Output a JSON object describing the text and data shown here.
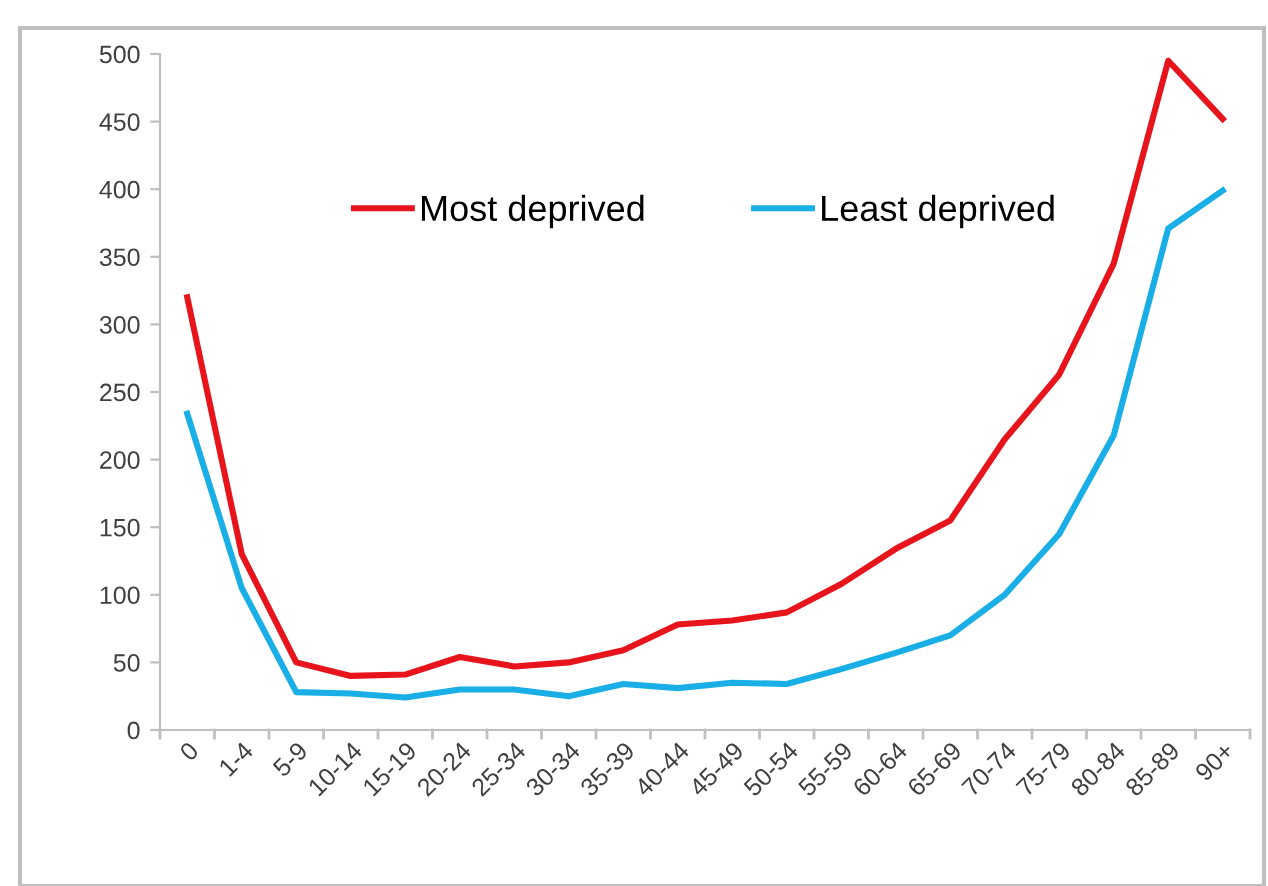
{
  "chart_data": {
    "type": "line",
    "categories": [
      "0",
      "1-4",
      "5-9",
      "10-14",
      "15-19",
      "20-24",
      "25-34",
      "30-34",
      "35-39",
      "40-44",
      "45-49",
      "50-54",
      "55-59",
      "60-64",
      "65-69",
      "70-74",
      "75-79",
      "80-84",
      "85-89",
      "90+"
    ],
    "series": [
      {
        "name": "Most deprived",
        "color": "#e8141b",
        "values": [
          320,
          130,
          50,
          40,
          41,
          54,
          47,
          50,
          59,
          78,
          81,
          87,
          108,
          134,
          155,
          215,
          263,
          345,
          495,
          452
        ]
      },
      {
        "name": "Least deprived",
        "color": "#1aaee6",
        "values": [
          234,
          105,
          28,
          27,
          24,
          30,
          30,
          25,
          34,
          31,
          35,
          34,
          45,
          57,
          70,
          100,
          145,
          218,
          371,
          399
        ]
      }
    ],
    "ylim": [
      0,
      500
    ],
    "yticks": [
      0,
      50,
      100,
      150,
      200,
      250,
      300,
      350,
      400,
      450,
      500
    ],
    "grid": false,
    "legend": "top",
    "marker": "none",
    "line_style": "solid"
  }
}
